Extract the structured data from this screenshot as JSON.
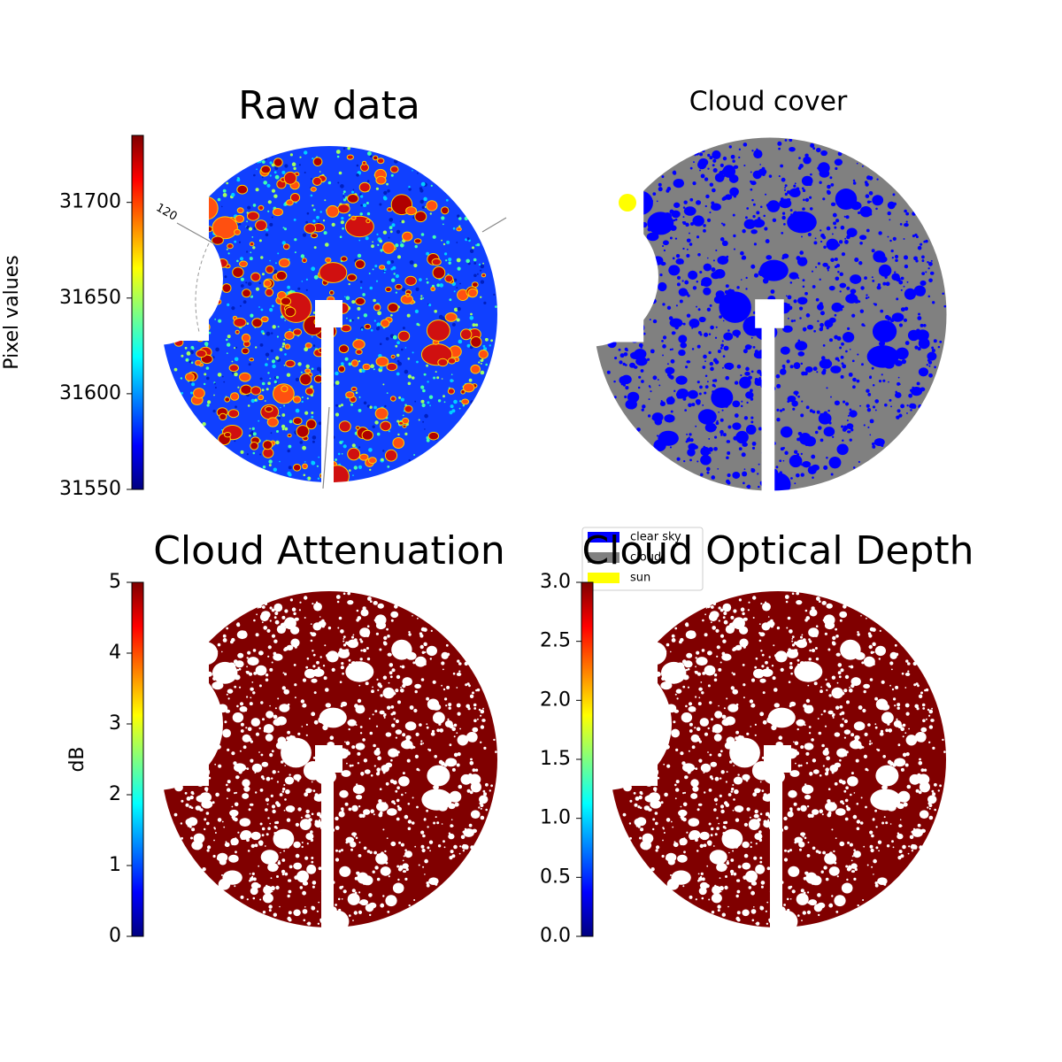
{
  "chart_data": [
    {
      "type": "image",
      "title": "Raw data",
      "colormap": "jet",
      "colorbar_label": "Pixel values",
      "ylim": [
        31550,
        31735
      ],
      "yticks": [
        31550,
        31600,
        31650,
        31700
      ],
      "annotation": "120"
    },
    {
      "type": "image",
      "title": "Cloud cover",
      "legend": [
        {
          "name": "clear sky",
          "color": "#0000ff"
        },
        {
          "name": "cloud",
          "color": "#808080"
        },
        {
          "name": "sun",
          "color": "#ffff00"
        }
      ]
    },
    {
      "type": "image",
      "title": "Cloud Attenuation",
      "colormap": "jet",
      "colorbar_label": "dB",
      "ylim": [
        0,
        5
      ],
      "yticks": [
        0,
        1,
        2,
        3,
        4,
        5
      ]
    },
    {
      "type": "image",
      "title": "Cloud Optical Depth",
      "colormap": "jet",
      "ylim": [
        0,
        3
      ],
      "yticks": [
        {
          "value": 0,
          "label": "0.0"
        },
        0.5,
        {
          "value": 1,
          "label": "1.0"
        },
        1.5,
        {
          "value": 2,
          "label": "2.0"
        },
        2.5,
        {
          "value": 3,
          "label": "3.0"
        }
      ]
    }
  ]
}
